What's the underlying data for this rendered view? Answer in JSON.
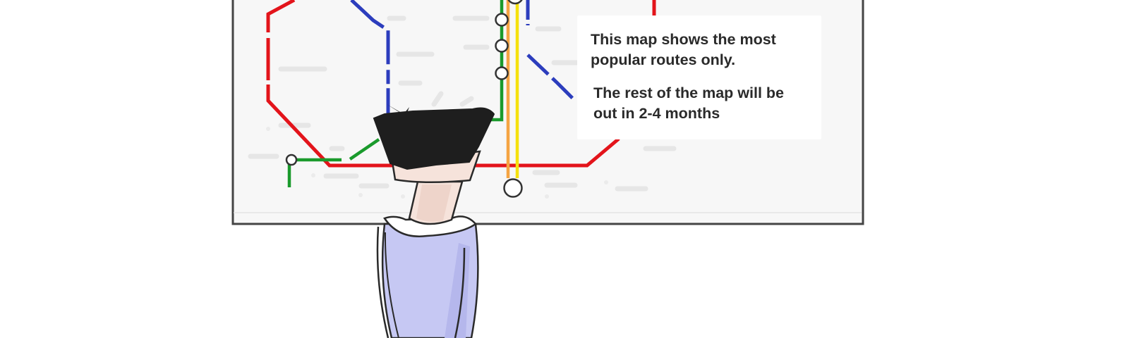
{
  "scene": {
    "subject": "person-viewing-transit-map",
    "map_lines": [
      {
        "name": "red",
        "color": "#e3141b"
      },
      {
        "name": "blue",
        "color": "#2c3dbd"
      },
      {
        "name": "green",
        "color": "#1a9a2c"
      },
      {
        "name": "orange",
        "color": "#f5a442"
      },
      {
        "name": "yellow",
        "color": "#f5e10d"
      }
    ],
    "person": {
      "hair_color": "#1e1e1e",
      "skin_color": "#f6e3db",
      "shirt_color": "#c6c8f3"
    }
  },
  "notice": {
    "line1": "This map shows the most popular routes only.",
    "line2": "The rest of the map will be out in 2-4 months"
  }
}
